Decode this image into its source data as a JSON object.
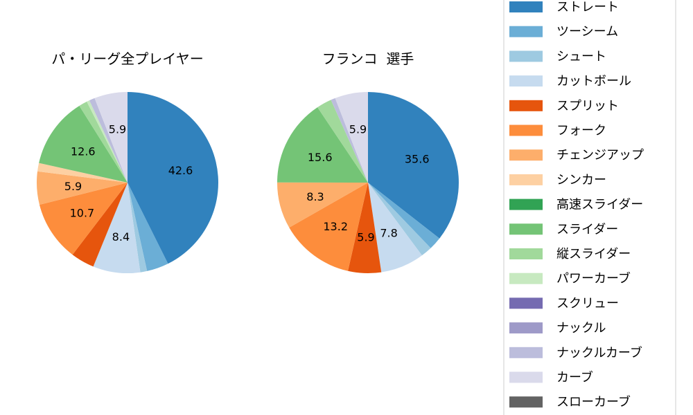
{
  "chart_data": [
    {
      "type": "pie",
      "title": "パ・リーグ全プレイヤー",
      "categories": [
        "ストレート",
        "ツーシーム",
        "シュート",
        "カットボール",
        "スプリット",
        "フォーク",
        "チェンジアップ",
        "シンカー",
        "高速スライダー",
        "スライダー",
        "縦スライダー",
        "パワーカーブ",
        "スクリュー",
        "ナックル",
        "ナックルカーブ",
        "カーブ",
        "スローカーブ"
      ],
      "values": [
        42.6,
        3.9,
        1.2,
        8.4,
        4.2,
        10.7,
        5.9,
        1.5,
        0.0,
        12.6,
        1.5,
        0.5,
        0.0,
        0.0,
        1.0,
        5.9,
        0.0
      ],
      "labeled_values": [
        42.6,
        8.4,
        10.7,
        12.6
      ]
    },
    {
      "type": "pie",
      "title": "フランコ  選手",
      "categories": [
        "ストレート",
        "ツーシーム",
        "シュート",
        "カットボール",
        "スプリット",
        "フォーク",
        "チェンジアップ",
        "シンカー",
        "高速スライダー",
        "スライダー",
        "縦スライダー",
        "パワーカーブ",
        "スクリュー",
        "ナックル",
        "ナックルカーブ",
        "カーブ",
        "スローカーブ"
      ],
      "values": [
        35.6,
        2.3,
        2.0,
        7.8,
        5.9,
        13.2,
        8.3,
        0.0,
        0.0,
        15.6,
        2.7,
        0.0,
        0.0,
        0.0,
        0.8,
        5.9,
        0.0
      ],
      "labeled_values": [
        35.6,
        7.8,
        5.9,
        13.2,
        8.3,
        15.6,
        5.9
      ]
    }
  ],
  "legend": {
    "placement": "right",
    "items": [
      {
        "label": "ストレート",
        "color": "#3182bd"
      },
      {
        "label": "ツーシーム",
        "color": "#6baed6"
      },
      {
        "label": "シュート",
        "color": "#9ecae1"
      },
      {
        "label": "カットボール",
        "color": "#c6dbef"
      },
      {
        "label": "スプリット",
        "color": "#e6550d"
      },
      {
        "label": "フォーク",
        "color": "#fd8d3c"
      },
      {
        "label": "チェンジアップ",
        "color": "#fdae6b"
      },
      {
        "label": "シンカー",
        "color": "#fdd0a2"
      },
      {
        "label": "高速スライダー",
        "color": "#31a354"
      },
      {
        "label": "スライダー",
        "color": "#74c476"
      },
      {
        "label": "縦スライダー",
        "color": "#a1d99b"
      },
      {
        "label": "パワーカーブ",
        "color": "#c7e9c0"
      },
      {
        "label": "スクリュー",
        "color": "#756bb1"
      },
      {
        "label": "ナックル",
        "color": "#9e9ac8"
      },
      {
        "label": "ナックルカーブ",
        "color": "#bcbddc"
      },
      {
        "label": "カーブ",
        "color": "#dadaeb"
      },
      {
        "label": "スローカーブ",
        "color": "#636363"
      }
    ]
  }
}
